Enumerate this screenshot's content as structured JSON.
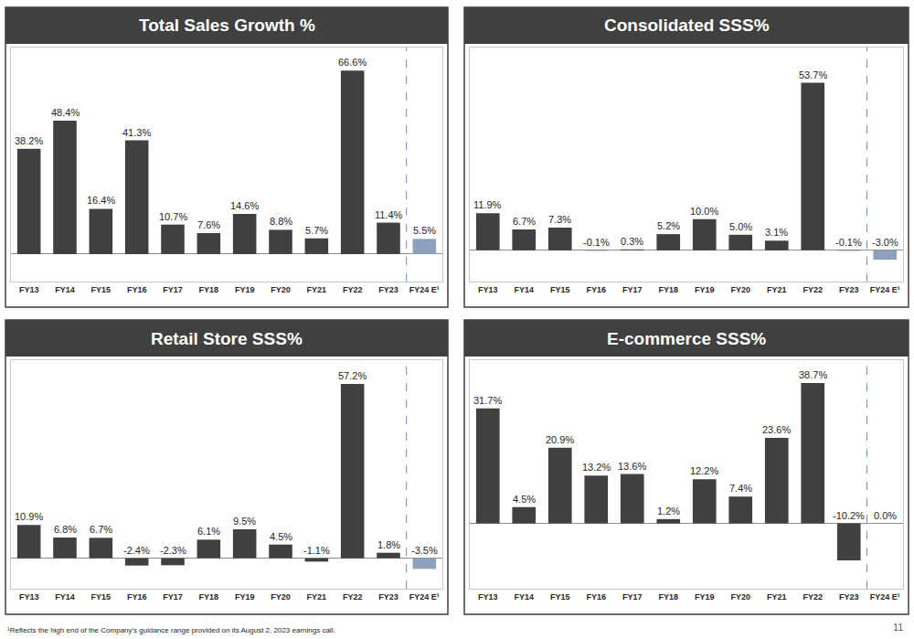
{
  "chart_data": [
    {
      "type": "bar",
      "title": "Total Sales Growth %",
      "categories": [
        "FY13",
        "FY14",
        "FY15",
        "FY16",
        "FY17",
        "FY18",
        "FY19",
        "FY20",
        "FY21",
        "FY22",
        "FY23",
        "FY24 E¹"
      ],
      "values": [
        38.2,
        48.4,
        16.4,
        41.3,
        10.7,
        7.6,
        14.6,
        8.8,
        5.7,
        66.6,
        11.4,
        5.5
      ],
      "value_labels": [
        "38.2%",
        "48.4%",
        "16.4%",
        "41.3%",
        "10.7%",
        "7.6%",
        "14.6%",
        "8.8%",
        "5.7%",
        "66.6%",
        "11.4%",
        "5.5%"
      ],
      "colors": [
        "#404040",
        "#404040",
        "#404040",
        "#404040",
        "#404040",
        "#404040",
        "#404040",
        "#404040",
        "#404040",
        "#404040",
        "#404040",
        "#8da0bc"
      ],
      "ylim": [
        -10,
        75
      ],
      "yticks": [],
      "grid": false,
      "data_labels": true,
      "tick_labels": "x"
    },
    {
      "type": "bar",
      "title": "Consolidated SSS%",
      "categories": [
        "FY13",
        "FY14",
        "FY15",
        "FY16",
        "FY17",
        "FY18",
        "FY19",
        "FY20",
        "FY21",
        "FY22",
        "FY23",
        "FY24 E¹"
      ],
      "values": [
        11.9,
        6.7,
        7.3,
        -0.1,
        0.3,
        5.2,
        10.0,
        5.0,
        3.1,
        53.7,
        -0.1,
        -3.0
      ],
      "value_labels": [
        "11.9%",
        "6.7%",
        "7.3%",
        "-0.1%",
        "0.3%",
        "5.2%",
        "10.0%",
        "5.0%",
        "3.1%",
        "53.7%",
        "-0.1%",
        "-3.0%"
      ],
      "colors": [
        "#404040",
        "#404040",
        "#404040",
        "#404040",
        "#404040",
        "#404040",
        "#404040",
        "#404040",
        "#404040",
        "#404040",
        "#404040",
        "#8da0bc"
      ],
      "ylim": [
        -10,
        65
      ],
      "yticks": [],
      "grid": false,
      "data_labels": true,
      "tick_labels": "x"
    },
    {
      "type": "bar",
      "title": "Retail Store SSS%",
      "categories": [
        "FY13",
        "FY14",
        "FY15",
        "FY16",
        "FY17",
        "FY18",
        "FY19",
        "FY20",
        "FY21",
        "FY22",
        "FY23",
        "FY24 E¹"
      ],
      "values": [
        10.9,
        6.8,
        6.7,
        -2.4,
        -2.3,
        6.1,
        9.5,
        4.5,
        -1.1,
        57.2,
        1.8,
        -3.5
      ],
      "value_labels": [
        "10.9%",
        "6.8%",
        "6.7%",
        "-2.4%",
        "-2.3%",
        "6.1%",
        "9.5%",
        "4.5%",
        "-1.1%",
        "57.2%",
        "1.8%",
        "-3.5%"
      ],
      "colors": [
        "#404040",
        "#404040",
        "#404040",
        "#404040",
        "#404040",
        "#404040",
        "#404040",
        "#404040",
        "#404040",
        "#404040",
        "#404040",
        "#8da0bc"
      ],
      "ylim": [
        -10,
        65
      ],
      "yticks": [],
      "grid": false,
      "data_labels": true,
      "tick_labels": "x"
    },
    {
      "type": "bar",
      "title": "E-commerce SSS%",
      "categories": [
        "FY13",
        "FY14",
        "FY15",
        "FY16",
        "FY17",
        "FY18",
        "FY19",
        "FY20",
        "FY21",
        "FY22",
        "FY23",
        "FY24 E¹"
      ],
      "values": [
        31.7,
        4.5,
        20.9,
        13.2,
        13.6,
        1.2,
        12.2,
        7.4,
        23.6,
        38.7,
        -10.2,
        0.0
      ],
      "value_labels": [
        "31.7%",
        "4.5%",
        "20.9%",
        "13.2%",
        "13.6%",
        "1.2%",
        "12.2%",
        "7.4%",
        "23.6%",
        "38.7%",
        "-10.2%",
        "0.0%"
      ],
      "colors": [
        "#404040",
        "#404040",
        "#404040",
        "#404040",
        "#404040",
        "#404040",
        "#404040",
        "#404040",
        "#404040",
        "#404040",
        "#404040",
        "#8da0bc"
      ],
      "ylim": [
        -18,
        45
      ],
      "yticks": [],
      "grid": false,
      "data_labels": true,
      "tick_labels": "x"
    }
  ],
  "footnote": "¹Reflects the high end of the Company's guidance range provided on its August 2, 2023 earnings call.",
  "page_number": 11
}
